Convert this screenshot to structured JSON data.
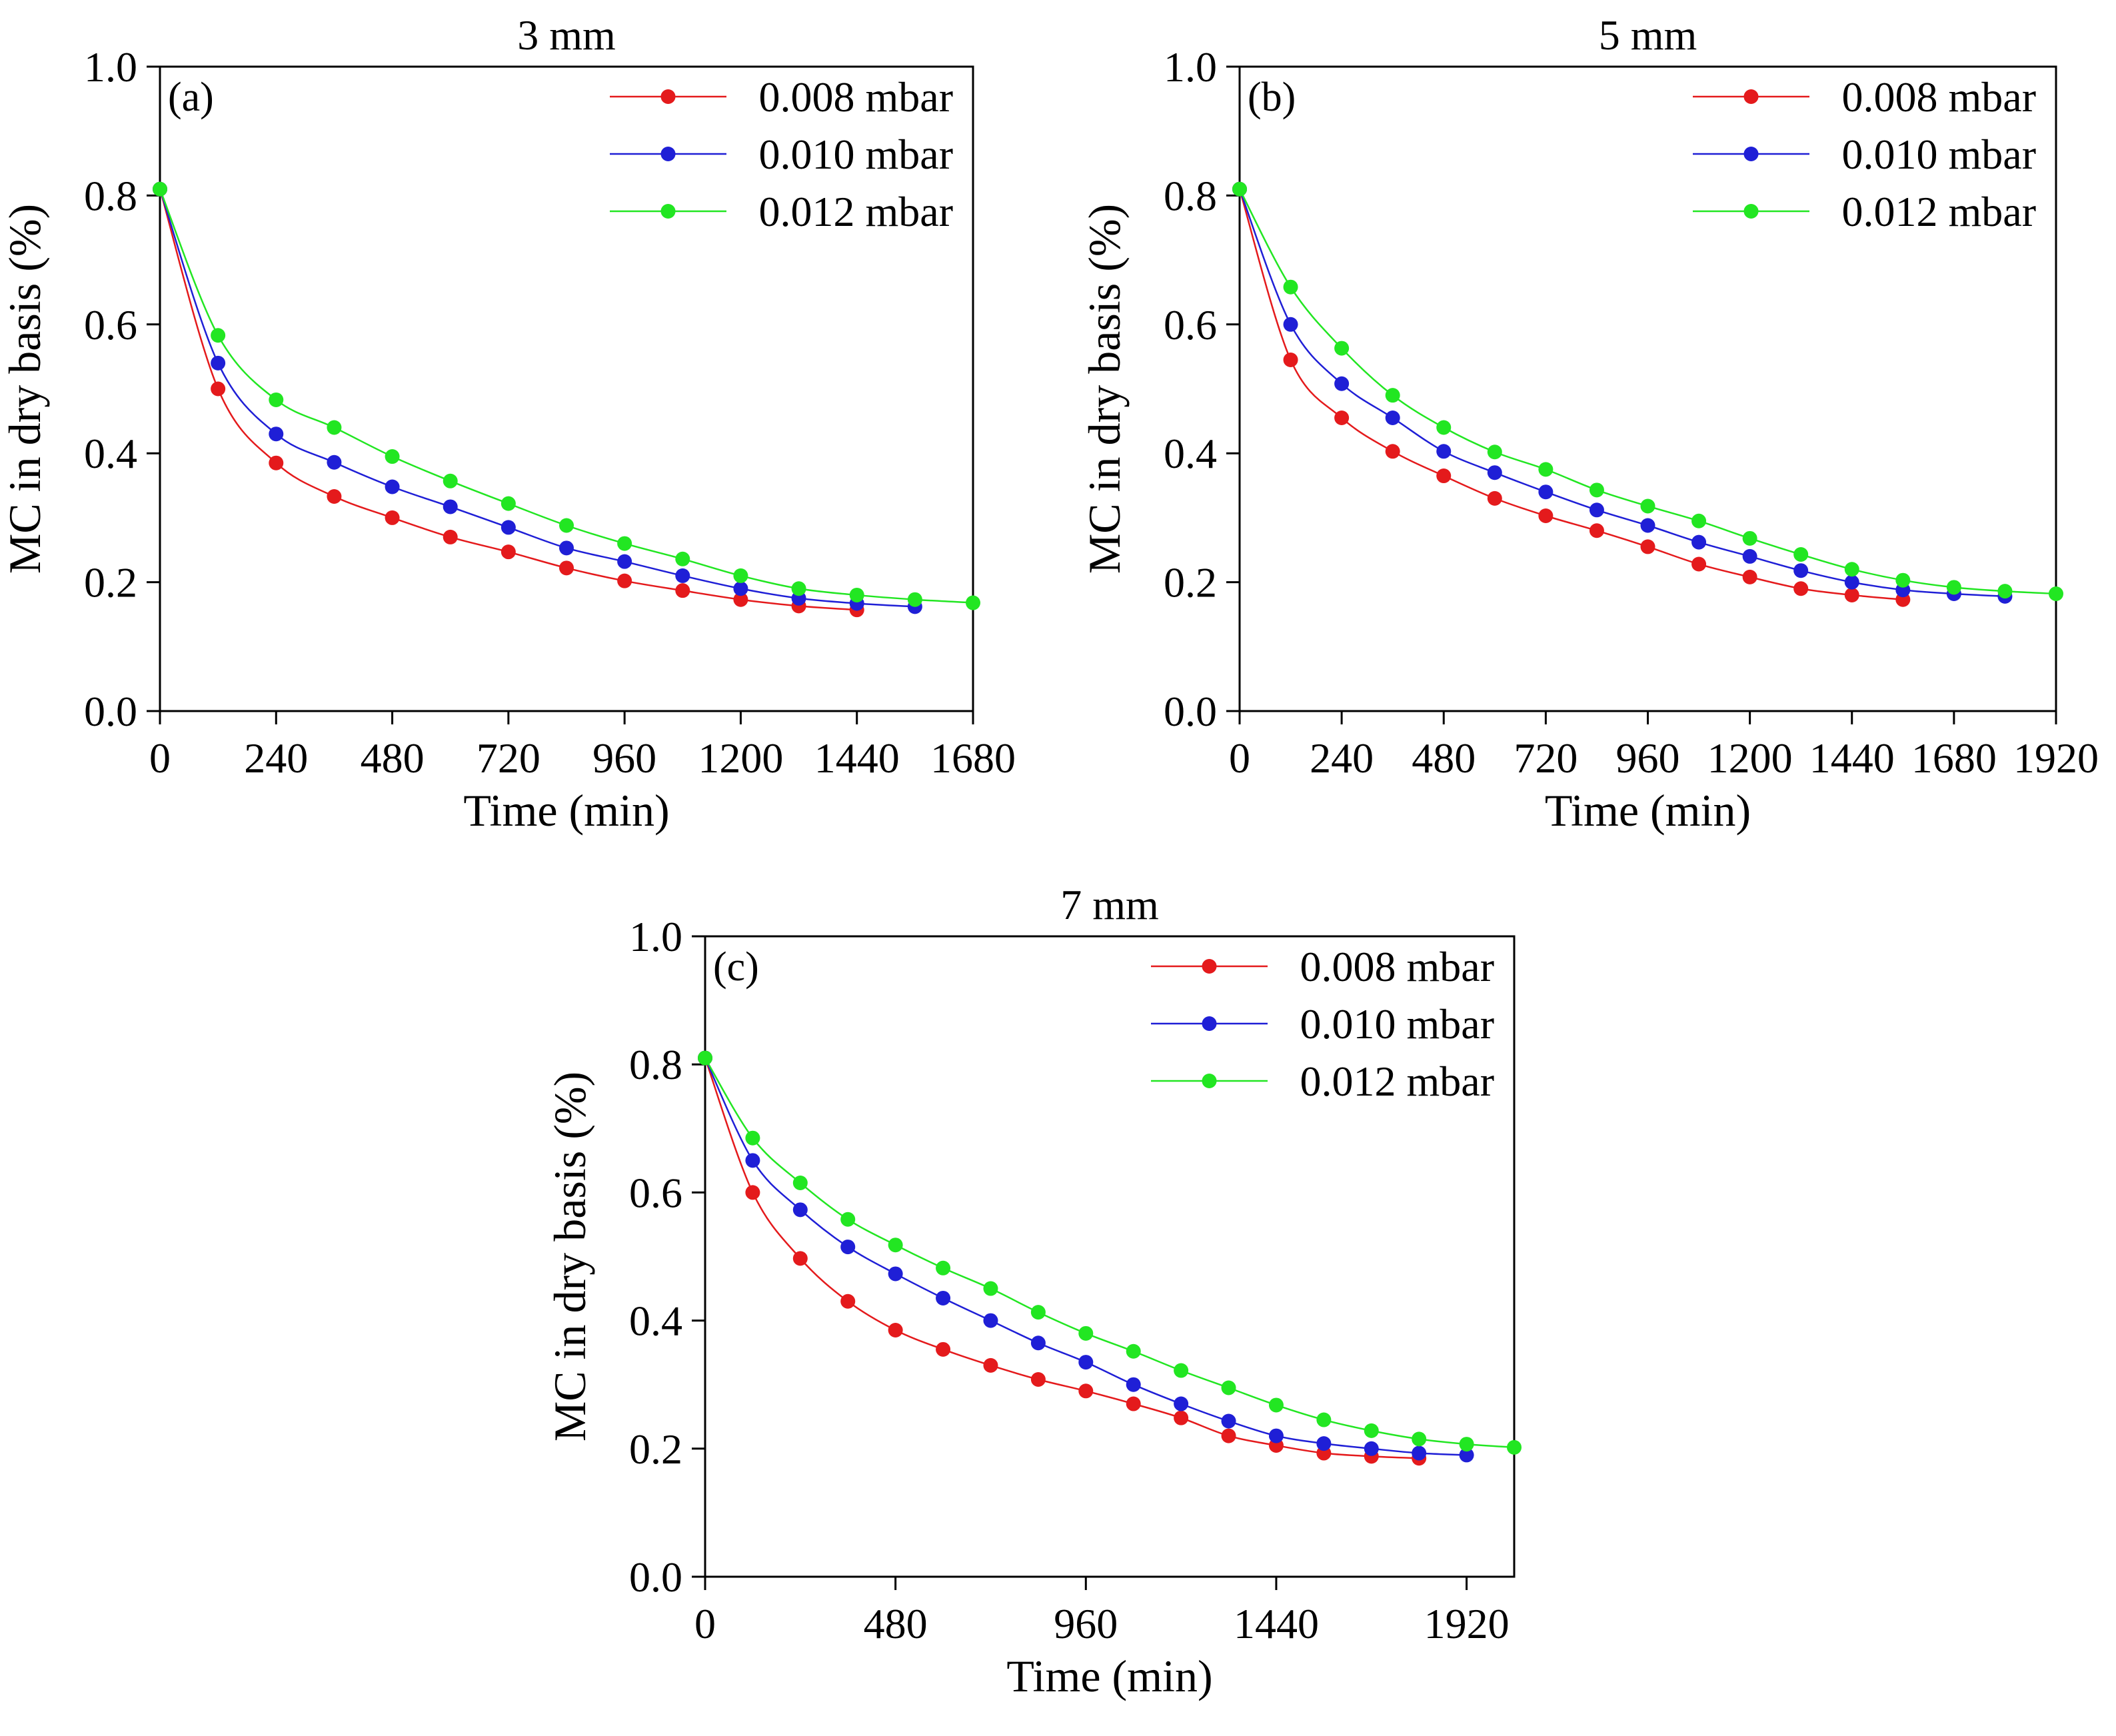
{
  "chart_data": [
    {
      "type": "line",
      "title": "3 mm",
      "panel_label": "(a)",
      "xlabel": "Time (min)",
      "ylabel": "MC in dry basis (%)",
      "xlim": [
        0,
        1680
      ],
      "ylim": [
        0.0,
        1.0
      ],
      "xticks": [
        0,
        240,
        480,
        720,
        960,
        1200,
        1440,
        1680
      ],
      "yticks": [
        "0.0",
        "0.2",
        "0.4",
        "0.6",
        "0.8",
        "1.0"
      ],
      "legend_position": "top-right",
      "series": [
        {
          "name": "0.008 mbar",
          "color": "#e41a1c",
          "x": [
            0,
            120,
            240,
            360,
            480,
            600,
            720,
            840,
            960,
            1080,
            1200,
            1320,
            1440
          ],
          "y": [
            0.81,
            0.5,
            0.385,
            0.333,
            0.3,
            0.27,
            0.247,
            0.222,
            0.202,
            0.187,
            0.173,
            0.163,
            0.157
          ]
        },
        {
          "name": "0.010 mbar",
          "color": "#1f1fd6",
          "x": [
            0,
            120,
            240,
            360,
            480,
            600,
            720,
            840,
            960,
            1080,
            1200,
            1320,
            1440,
            1560
          ],
          "y": [
            0.81,
            0.54,
            0.43,
            0.386,
            0.348,
            0.317,
            0.285,
            0.253,
            0.232,
            0.21,
            0.19,
            0.175,
            0.167,
            0.162
          ]
        },
        {
          "name": "0.012 mbar",
          "color": "#22e622",
          "x": [
            0,
            120,
            240,
            360,
            480,
            600,
            720,
            840,
            960,
            1080,
            1200,
            1320,
            1440,
            1560,
            1680
          ],
          "y": [
            0.81,
            0.583,
            0.483,
            0.44,
            0.395,
            0.357,
            0.322,
            0.288,
            0.26,
            0.236,
            0.21,
            0.19,
            0.18,
            0.173,
            0.168
          ]
        }
      ]
    },
    {
      "type": "line",
      "title": "5 mm",
      "panel_label": "(b)",
      "xlabel": "Time (min)",
      "ylabel": "MC in dry basis (%)",
      "xlim": [
        0,
        1920
      ],
      "ylim": [
        0.0,
        1.0
      ],
      "xticks": [
        0,
        240,
        480,
        720,
        960,
        1200,
        1440,
        1680,
        1920
      ],
      "yticks": [
        "0.0",
        "0.2",
        "0.4",
        "0.6",
        "0.8",
        "1.0"
      ],
      "legend_position": "top-right",
      "series": [
        {
          "name": "0.008 mbar",
          "color": "#e41a1c",
          "x": [
            0,
            120,
            240,
            360,
            480,
            600,
            720,
            840,
            960,
            1080,
            1200,
            1320,
            1440,
            1560
          ],
          "y": [
            0.81,
            0.545,
            0.455,
            0.403,
            0.365,
            0.33,
            0.303,
            0.28,
            0.255,
            0.228,
            0.208,
            0.19,
            0.18,
            0.173
          ]
        },
        {
          "name": "0.010 mbar",
          "color": "#1f1fd6",
          "x": [
            0,
            120,
            240,
            360,
            480,
            600,
            720,
            840,
            960,
            1080,
            1200,
            1320,
            1440,
            1560,
            1680,
            1800
          ],
          "y": [
            0.81,
            0.6,
            0.508,
            0.455,
            0.403,
            0.37,
            0.34,
            0.312,
            0.288,
            0.262,
            0.24,
            0.218,
            0.2,
            0.188,
            0.182,
            0.178
          ]
        },
        {
          "name": "0.012 mbar",
          "color": "#22e622",
          "x": [
            0,
            120,
            240,
            360,
            480,
            600,
            720,
            840,
            960,
            1080,
            1200,
            1320,
            1440,
            1560,
            1680,
            1800,
            1920
          ],
          "y": [
            0.81,
            0.658,
            0.563,
            0.49,
            0.44,
            0.402,
            0.375,
            0.343,
            0.318,
            0.295,
            0.268,
            0.243,
            0.22,
            0.203,
            0.192,
            0.186,
            0.182
          ]
        }
      ]
    },
    {
      "type": "line",
      "title": "7 mm",
      "panel_label": "(c)",
      "xlabel": "Time (min)",
      "ylabel": "MC in dry basis (%)",
      "xlim": [
        0,
        2040
      ],
      "ylim": [
        0.0,
        1.0
      ],
      "xticks": [
        0,
        480,
        960,
        1440,
        1920
      ],
      "yticks": [
        "0.0",
        "0.2",
        "0.4",
        "0.6",
        "0.8",
        "1.0"
      ],
      "legend_position": "top-right",
      "series": [
        {
          "name": "0.008 mbar",
          "color": "#e41a1c",
          "x": [
            0,
            120,
            240,
            360,
            480,
            600,
            720,
            840,
            960,
            1080,
            1200,
            1320,
            1440,
            1560,
            1680,
            1800
          ],
          "y": [
            0.81,
            0.6,
            0.497,
            0.43,
            0.385,
            0.355,
            0.33,
            0.308,
            0.29,
            0.27,
            0.248,
            0.22,
            0.205,
            0.193,
            0.188,
            0.185
          ]
        },
        {
          "name": "0.010 mbar",
          "color": "#1f1fd6",
          "x": [
            0,
            120,
            240,
            360,
            480,
            600,
            720,
            840,
            960,
            1080,
            1200,
            1320,
            1440,
            1560,
            1680,
            1800,
            1920
          ],
          "y": [
            0.81,
            0.65,
            0.573,
            0.515,
            0.473,
            0.435,
            0.4,
            0.365,
            0.335,
            0.3,
            0.27,
            0.243,
            0.22,
            0.208,
            0.2,
            0.193,
            0.19
          ]
        },
        {
          "name": "0.012 mbar",
          "color": "#22e622",
          "x": [
            0,
            120,
            240,
            360,
            480,
            600,
            720,
            840,
            960,
            1080,
            1200,
            1320,
            1440,
            1560,
            1680,
            1800,
            1920,
            2040
          ],
          "y": [
            0.81,
            0.685,
            0.615,
            0.558,
            0.518,
            0.482,
            0.45,
            0.413,
            0.38,
            0.352,
            0.322,
            0.295,
            0.268,
            0.245,
            0.228,
            0.215,
            0.207,
            0.202
          ]
        }
      ]
    }
  ]
}
